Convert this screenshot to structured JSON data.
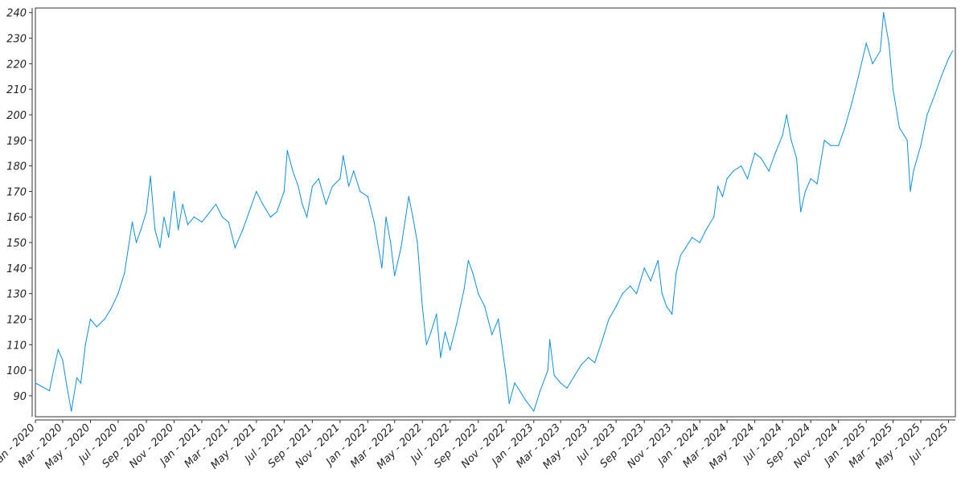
{
  "chart_data": {
    "type": "line",
    "title": "",
    "xlabel": "",
    "ylabel": "",
    "xlim": [
      "2020-01-01",
      "2025-07-16"
    ],
    "ylim": [
      81.8,
      241.8
    ],
    "grid": false,
    "line_color": "#0a8fe0",
    "yticks": [
      90,
      100,
      110,
      120,
      130,
      140,
      150,
      160,
      170,
      180,
      190,
      200,
      210,
      220,
      230,
      240
    ],
    "xticks": [
      {
        "date": "2020-01-01",
        "label": "Jan - 2020"
      },
      {
        "date": "2020-03-01",
        "label": "Mar - 2020"
      },
      {
        "date": "2020-05-01",
        "label": "May - 2020"
      },
      {
        "date": "2020-07-01",
        "label": "Jul - 2020"
      },
      {
        "date": "2020-09-01",
        "label": "Sep - 2020"
      },
      {
        "date": "2020-11-01",
        "label": "Nov - 2020"
      },
      {
        "date": "2021-01-01",
        "label": "Jan - 2021"
      },
      {
        "date": "2021-03-01",
        "label": "Mar - 2021"
      },
      {
        "date": "2021-05-01",
        "label": "May - 2021"
      },
      {
        "date": "2021-07-01",
        "label": "Jul - 2021"
      },
      {
        "date": "2021-09-01",
        "label": "Sep - 2021"
      },
      {
        "date": "2021-11-01",
        "label": "Nov - 2021"
      },
      {
        "date": "2022-01-01",
        "label": "Jan - 2022"
      },
      {
        "date": "2022-03-01",
        "label": "Mar - 2022"
      },
      {
        "date": "2022-05-01",
        "label": "May - 2022"
      },
      {
        "date": "2022-07-01",
        "label": "Jul - 2022"
      },
      {
        "date": "2022-09-01",
        "label": "Sep - 2022"
      },
      {
        "date": "2022-11-01",
        "label": "Nov - 2022"
      },
      {
        "date": "2023-01-01",
        "label": "Jan - 2023"
      },
      {
        "date": "2023-03-01",
        "label": "Mar - 2023"
      },
      {
        "date": "2023-05-01",
        "label": "May - 2023"
      },
      {
        "date": "2023-07-01",
        "label": "Jul - 2023"
      },
      {
        "date": "2023-09-01",
        "label": "Sep - 2023"
      },
      {
        "date": "2023-11-01",
        "label": "Nov - 2023"
      },
      {
        "date": "2024-01-01",
        "label": "Jan - 2024"
      },
      {
        "date": "2024-03-01",
        "label": "Mar - 2024"
      },
      {
        "date": "2024-05-01",
        "label": "May - 2024"
      },
      {
        "date": "2024-07-01",
        "label": "Jul - 2024"
      },
      {
        "date": "2024-09-01",
        "label": "Sep - 2024"
      },
      {
        "date": "2024-11-01",
        "label": "Nov - 2024"
      },
      {
        "date": "2025-01-01",
        "label": "Jan - 2025"
      },
      {
        "date": "2025-03-01",
        "label": "Mar - 2025"
      },
      {
        "date": "2025-05-01",
        "label": "May - 2025"
      },
      {
        "date": "2025-07-01",
        "label": "Jul - 2025"
      }
    ],
    "x": [
      "2020-01-01",
      "2020-02-01",
      "2020-02-10",
      "2020-02-20",
      "2020-03-01",
      "2020-03-10",
      "2020-03-20",
      "2020-04-01",
      "2020-04-10",
      "2020-04-20",
      "2020-05-01",
      "2020-05-15",
      "2020-06-01",
      "2020-06-15",
      "2020-07-01",
      "2020-07-15",
      "2020-08-01",
      "2020-08-10",
      "2020-08-20",
      "2020-09-01",
      "2020-09-10",
      "2020-09-20",
      "2020-10-01",
      "2020-10-10",
      "2020-10-20",
      "2020-11-01",
      "2020-11-10",
      "2020-11-20",
      "2020-12-01",
      "2020-12-15",
      "2021-01-01",
      "2021-02-01",
      "2021-02-15",
      "2021-03-01",
      "2021-03-15",
      "2021-04-01",
      "2021-04-15",
      "2021-05-01",
      "2021-05-15",
      "2021-06-01",
      "2021-06-15",
      "2021-07-01",
      "2021-07-08",
      "2021-07-20",
      "2021-08-01",
      "2021-08-10",
      "2021-08-20",
      "2021-09-01",
      "2021-09-15",
      "2021-10-01",
      "2021-10-15",
      "2021-11-01",
      "2021-11-08",
      "2021-11-20",
      "2021-12-01",
      "2021-12-15",
      "2022-01-01",
      "2022-01-15",
      "2022-02-01",
      "2022-02-10",
      "2022-02-20",
      "2022-03-01",
      "2022-03-15",
      "2022-04-01",
      "2022-04-10",
      "2022-04-20",
      "2022-05-01",
      "2022-05-10",
      "2022-05-20",
      "2022-06-01",
      "2022-06-10",
      "2022-06-20",
      "2022-07-01",
      "2022-07-15",
      "2022-08-01",
      "2022-08-10",
      "2022-08-20",
      "2022-09-01",
      "2022-09-15",
      "2022-10-01",
      "2022-10-15",
      "2022-11-01",
      "2022-11-08",
      "2022-11-20",
      "2022-12-01",
      "2022-12-15",
      "2023-01-01",
      "2023-01-15",
      "2023-02-01",
      "2023-02-05",
      "2023-02-15",
      "2023-03-01",
      "2023-03-15",
      "2023-04-01",
      "2023-04-15",
      "2023-05-01",
      "2023-05-15",
      "2023-06-01",
      "2023-06-15",
      "2023-07-01",
      "2023-07-15",
      "2023-08-01",
      "2023-08-15",
      "2023-09-01",
      "2023-09-15",
      "2023-10-01",
      "2023-10-10",
      "2023-10-20",
      "2023-11-01",
      "2023-11-10",
      "2023-11-20",
      "2023-12-01",
      "2023-12-15",
      "2024-01-01",
      "2024-01-15",
      "2024-02-01",
      "2024-02-10",
      "2024-02-20",
      "2024-03-01",
      "2024-03-15",
      "2024-04-01",
      "2024-04-15",
      "2024-05-01",
      "2024-05-15",
      "2024-06-01",
      "2024-06-15",
      "2024-07-01",
      "2024-07-10",
      "2024-07-20",
      "2024-08-01",
      "2024-08-10",
      "2024-08-20",
      "2024-09-01",
      "2024-09-15",
      "2024-10-01",
      "2024-10-15",
      "2024-11-01",
      "2024-11-15",
      "2024-12-01",
      "2024-12-15",
      "2025-01-01",
      "2025-01-15",
      "2025-02-01",
      "2025-02-08",
      "2025-02-20",
      "2025-03-01",
      "2025-03-15",
      "2025-04-01",
      "2025-04-08",
      "2025-04-15",
      "2025-05-01",
      "2025-05-15",
      "2025-06-01",
      "2025-06-15",
      "2025-07-01",
      "2025-07-10"
    ],
    "values": [
      95,
      92,
      100,
      108,
      104,
      94,
      84,
      97,
      95,
      110,
      120,
      117,
      120,
      124,
      130,
      138,
      158,
      150,
      155,
      162,
      176,
      155,
      148,
      160,
      152,
      170,
      155,
      165,
      157,
      160,
      158,
      165,
      160,
      158,
      148,
      155,
      162,
      170,
      165,
      160,
      162,
      170,
      186,
      178,
      172,
      165,
      160,
      172,
      175,
      165,
      172,
      175,
      184,
      172,
      178,
      170,
      168,
      158,
      140,
      160,
      150,
      137,
      148,
      168,
      160,
      150,
      125,
      110,
      115,
      122,
      105,
      115,
      108,
      118,
      132,
      143,
      138,
      130,
      125,
      114,
      120,
      98,
      87,
      95,
      92,
      88,
      84,
      92,
      100,
      112,
      98,
      95,
      93,
      98,
      102,
      105,
      103,
      112,
      120,
      125,
      130,
      133,
      130,
      140,
      135,
      143,
      130,
      125,
      122,
      138,
      145,
      148,
      152,
      150,
      155,
      160,
      172,
      168,
      175,
      178,
      180,
      175,
      185,
      183,
      178,
      185,
      192,
      200,
      190,
      183,
      162,
      170,
      175,
      173,
      190,
      188,
      188,
      195,
      205,
      215,
      228,
      220,
      225,
      240,
      228,
      210,
      195,
      190,
      170,
      178,
      188,
      200,
      208,
      215,
      222,
      225
    ]
  }
}
